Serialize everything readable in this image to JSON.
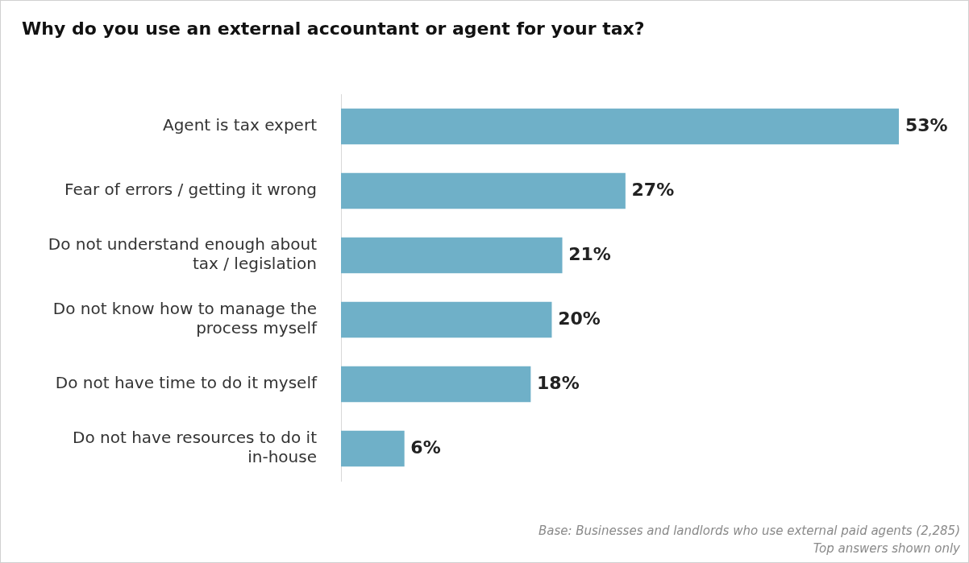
{
  "chart_data": {
    "type": "bar",
    "orientation": "horizontal",
    "title": "Why do you use an external accountant or agent for your tax?",
    "categories": [
      "Agent is tax expert",
      "Fear of errors / getting it wrong",
      "Do not understand enough about tax / legislation",
      "Do not know how to manage the process myself",
      "Do not have time to do it myself",
      "Do not have resources to do it in-house"
    ],
    "values": [
      53,
      27,
      21,
      20,
      18,
      6
    ],
    "value_labels": [
      "53%",
      "27%",
      "21%",
      "20%",
      "18%",
      "6%"
    ],
    "color": "#6fb0c8",
    "annotations": [
      "Base: Businesses and landlords who use external paid agents (2,285)",
      "Top answers shown only"
    ]
  }
}
